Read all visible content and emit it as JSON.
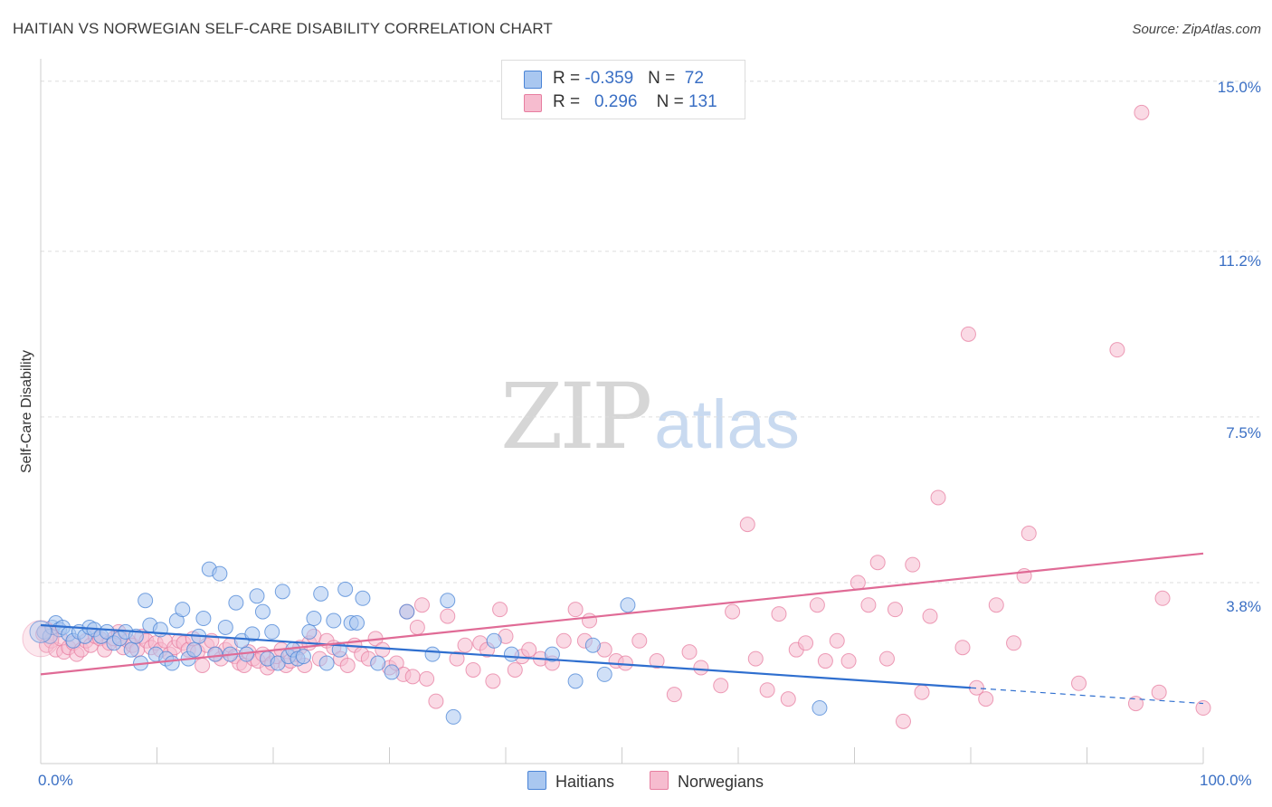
{
  "title": "HAITIAN VS NORWEGIAN SELF-CARE DISABILITY CORRELATION CHART",
  "source": "Source: ZipAtlas.com",
  "watermark": {
    "zip": "ZIP",
    "atlas": "atlas"
  },
  "colors": {
    "haitians_fill": "#a9c7f0",
    "haitians_stroke": "#4a84d6",
    "haitians_line": "#2f6fcf",
    "norwegians_fill": "#f6bccf",
    "norwegians_stroke": "#e77ea0",
    "norwegians_line": "#e06b96",
    "grid": "#dddddd",
    "label": "#3a6fc4"
  },
  "legend": {
    "rows": [
      {
        "r_label": "R = ",
        "r_value": "-0.359",
        "n_label": "N = ",
        "n_value": "72"
      },
      {
        "r_label": "R = ",
        "r_value": "0.296",
        "n_label": "N = ",
        "n_value": "131"
      }
    ]
  },
  "bottom_legend": {
    "haitians": "Haitians",
    "norwegians": "Norwegians"
  },
  "chart_data": {
    "type": "scatter",
    "title": "HAITIAN VS NORWEGIAN SELF-CARE DISABILITY CORRELATION CHART",
    "xlabel": "",
    "ylabel": "Self-Care Disability",
    "xlim": [
      0,
      100
    ],
    "ylim": [
      0,
      15.5
    ],
    "y_ticks": [
      3.8,
      7.5,
      11.2,
      15.0
    ],
    "y_tick_labels": [
      "3.8%",
      "7.5%",
      "11.2%",
      "15.0%"
    ],
    "x_tick_labels": [
      "0.0%",
      "100.0%"
    ],
    "grid": true,
    "series": [
      {
        "name": "Haitians",
        "r": -0.359,
        "n": 72,
        "trend": {
          "x0": 0,
          "y0": 2.85,
          "x1": 80,
          "y1": 1.45,
          "dashed_to_x": 100,
          "dashed_to_y": 1.1
        },
        "points": [
          [
            0.3,
            2.7
          ],
          [
            0.8,
            2.6
          ],
          [
            1.0,
            2.8
          ],
          [
            1.3,
            2.9
          ],
          [
            1.6,
            2.75
          ],
          [
            1.9,
            2.8
          ],
          [
            2.4,
            2.65
          ],
          [
            2.8,
            2.5
          ],
          [
            3.3,
            2.7
          ],
          [
            3.8,
            2.6
          ],
          [
            4.2,
            2.8
          ],
          [
            4.6,
            2.75
          ],
          [
            5.2,
            2.6
          ],
          [
            5.7,
            2.7
          ],
          [
            6.3,
            2.45
          ],
          [
            6.8,
            2.55
          ],
          [
            7.3,
            2.7
          ],
          [
            7.8,
            2.3
          ],
          [
            8.2,
            2.6
          ],
          [
            8.6,
            2.0
          ],
          [
            9.0,
            3.4
          ],
          [
            9.4,
            2.85
          ],
          [
            9.9,
            2.2
          ],
          [
            10.3,
            2.75
          ],
          [
            10.8,
            2.1
          ],
          [
            11.3,
            2.0
          ],
          [
            11.7,
            2.95
          ],
          [
            12.2,
            3.2
          ],
          [
            12.7,
            2.1
          ],
          [
            13.2,
            2.3
          ],
          [
            13.6,
            2.6
          ],
          [
            14.0,
            3.0
          ],
          [
            14.5,
            4.1
          ],
          [
            15.0,
            2.2
          ],
          [
            15.4,
            4.0
          ],
          [
            15.9,
            2.8
          ],
          [
            16.3,
            2.2
          ],
          [
            16.8,
            3.35
          ],
          [
            17.3,
            2.5
          ],
          [
            17.7,
            2.2
          ],
          [
            18.2,
            2.65
          ],
          [
            18.6,
            3.5
          ],
          [
            19.1,
            3.15
          ],
          [
            19.5,
            2.1
          ],
          [
            19.9,
            2.7
          ],
          [
            20.4,
            2.0
          ],
          [
            20.8,
            3.6
          ],
          [
            21.3,
            2.15
          ],
          [
            21.7,
            2.3
          ],
          [
            22.1,
            2.1
          ],
          [
            22.6,
            2.15
          ],
          [
            23.1,
            2.7
          ],
          [
            23.5,
            3.0
          ],
          [
            24.1,
            3.55
          ],
          [
            24.6,
            2.0
          ],
          [
            25.2,
            2.95
          ],
          [
            25.7,
            2.3
          ],
          [
            26.2,
            3.65
          ],
          [
            26.7,
            2.9
          ],
          [
            27.2,
            2.9
          ],
          [
            27.7,
            3.45
          ],
          [
            29.0,
            2.0
          ],
          [
            30.2,
            1.8
          ],
          [
            31.5,
            3.15
          ],
          [
            33.7,
            2.2
          ],
          [
            35.0,
            3.4
          ],
          [
            35.5,
            0.8
          ],
          [
            39.0,
            2.5
          ],
          [
            40.5,
            2.2
          ],
          [
            44.0,
            2.2
          ],
          [
            46.0,
            1.6
          ],
          [
            47.5,
            2.4
          ],
          [
            48.5,
            1.75
          ],
          [
            50.5,
            3.3
          ],
          [
            67.0,
            1.0
          ]
        ]
      },
      {
        "name": "Norwegians",
        "r": 0.296,
        "n": 131,
        "trend": {
          "x0": 0,
          "y0": 1.75,
          "x1": 100,
          "y1": 4.45
        },
        "points": [
          [
            0.2,
            2.65
          ],
          [
            0.5,
            2.4
          ],
          [
            0.9,
            2.5
          ],
          [
            1.3,
            2.3
          ],
          [
            1.7,
            2.55
          ],
          [
            2.0,
            2.25
          ],
          [
            2.4,
            2.35
          ],
          [
            2.8,
            2.45
          ],
          [
            3.1,
            2.2
          ],
          [
            3.5,
            2.3
          ],
          [
            3.9,
            2.5
          ],
          [
            4.3,
            2.4
          ],
          [
            4.7,
            2.6
          ],
          [
            5.1,
            2.55
          ],
          [
            5.5,
            2.3
          ],
          [
            5.9,
            2.45
          ],
          [
            6.3,
            2.55
          ],
          [
            6.7,
            2.7
          ],
          [
            7.1,
            2.35
          ],
          [
            7.5,
            2.5
          ],
          [
            7.9,
            2.4
          ],
          [
            8.3,
            2.3
          ],
          [
            8.7,
            2.6
          ],
          [
            9.1,
            2.5
          ],
          [
            9.5,
            2.35
          ],
          [
            9.9,
            2.45
          ],
          [
            10.3,
            2.3
          ],
          [
            10.7,
            2.5
          ],
          [
            11.1,
            2.2
          ],
          [
            11.5,
            2.35
          ],
          [
            11.9,
            2.5
          ],
          [
            12.3,
            2.45
          ],
          [
            12.7,
            2.3
          ],
          [
            13.1,
            2.55
          ],
          [
            13.5,
            2.25
          ],
          [
            13.9,
            1.95
          ],
          [
            14.3,
            2.4
          ],
          [
            14.7,
            2.5
          ],
          [
            15.1,
            2.2
          ],
          [
            15.5,
            2.1
          ],
          [
            15.9,
            2.3
          ],
          [
            16.3,
            2.4
          ],
          [
            16.7,
            2.15
          ],
          [
            17.1,
            2.0
          ],
          [
            17.5,
            1.95
          ],
          [
            17.9,
            2.25
          ],
          [
            18.3,
            2.1
          ],
          [
            18.7,
            2.05
          ],
          [
            19.1,
            2.2
          ],
          [
            19.5,
            1.9
          ],
          [
            19.9,
            2.0
          ],
          [
            20.3,
            2.15
          ],
          [
            20.7,
            2.3
          ],
          [
            21.1,
            1.95
          ],
          [
            21.5,
            2.05
          ],
          [
            21.9,
            2.2
          ],
          [
            22.3,
            2.35
          ],
          [
            22.7,
            1.95
          ],
          [
            23.1,
            2.45
          ],
          [
            23.5,
            2.6
          ],
          [
            24.0,
            2.1
          ],
          [
            24.6,
            2.5
          ],
          [
            25.2,
            2.35
          ],
          [
            25.8,
            2.1
          ],
          [
            26.4,
            1.95
          ],
          [
            27.0,
            2.4
          ],
          [
            27.6,
            2.2
          ],
          [
            28.2,
            2.1
          ],
          [
            28.8,
            2.55
          ],
          [
            29.4,
            2.3
          ],
          [
            30.0,
            1.9
          ],
          [
            30.6,
            2.0
          ],
          [
            31.2,
            1.75
          ],
          [
            31.5,
            3.15
          ],
          [
            32.0,
            1.7
          ],
          [
            32.4,
            2.8
          ],
          [
            32.8,
            3.3
          ],
          [
            33.2,
            1.65
          ],
          [
            34.0,
            1.15
          ],
          [
            35.0,
            3.05
          ],
          [
            35.8,
            2.1
          ],
          [
            36.5,
            2.4
          ],
          [
            37.2,
            1.85
          ],
          [
            37.8,
            2.45
          ],
          [
            38.4,
            2.3
          ],
          [
            38.9,
            1.6
          ],
          [
            39.5,
            3.2
          ],
          [
            40.0,
            2.6
          ],
          [
            40.8,
            1.85
          ],
          [
            41.4,
            2.15
          ],
          [
            42.0,
            2.3
          ],
          [
            43.0,
            2.1
          ],
          [
            44.0,
            2.0
          ],
          [
            45.0,
            2.5
          ],
          [
            46.0,
            3.2
          ],
          [
            46.8,
            2.5
          ],
          [
            47.2,
            2.95
          ],
          [
            48.5,
            2.3
          ],
          [
            49.5,
            2.05
          ],
          [
            50.3,
            2.0
          ],
          [
            51.5,
            2.5
          ],
          [
            53.0,
            2.05
          ],
          [
            54.5,
            1.3
          ],
          [
            55.8,
            2.25
          ],
          [
            56.8,
            1.9
          ],
          [
            58.5,
            1.5
          ],
          [
            59.5,
            3.15
          ],
          [
            60.8,
            5.1
          ],
          [
            61.5,
            2.1
          ],
          [
            62.5,
            1.4
          ],
          [
            63.5,
            3.1
          ],
          [
            64.3,
            1.2
          ],
          [
            65.0,
            2.3
          ],
          [
            65.8,
            2.45
          ],
          [
            66.8,
            3.3
          ],
          [
            67.5,
            2.05
          ],
          [
            68.5,
            2.5
          ],
          [
            69.5,
            2.05
          ],
          [
            70.3,
            3.8
          ],
          [
            71.2,
            3.3
          ],
          [
            72.0,
            4.25
          ],
          [
            72.8,
            2.1
          ],
          [
            73.5,
            3.2
          ],
          [
            74.2,
            0.7
          ],
          [
            75.0,
            4.2
          ],
          [
            75.8,
            1.35
          ],
          [
            76.5,
            3.05
          ],
          [
            77.2,
            5.7
          ],
          [
            79.3,
            2.35
          ],
          [
            79.8,
            9.35
          ],
          [
            80.5,
            1.45
          ],
          [
            81.3,
            1.2
          ],
          [
            82.2,
            3.3
          ],
          [
            83.7,
            2.45
          ],
          [
            84.6,
            3.95
          ],
          [
            85.0,
            4.9
          ],
          [
            89.3,
            1.55
          ],
          [
            92.6,
            9.0
          ],
          [
            94.2,
            1.1
          ],
          [
            94.7,
            14.3
          ],
          [
            96.2,
            1.35
          ],
          [
            96.5,
            3.45
          ],
          [
            100.0,
            1.0
          ]
        ]
      }
    ]
  }
}
